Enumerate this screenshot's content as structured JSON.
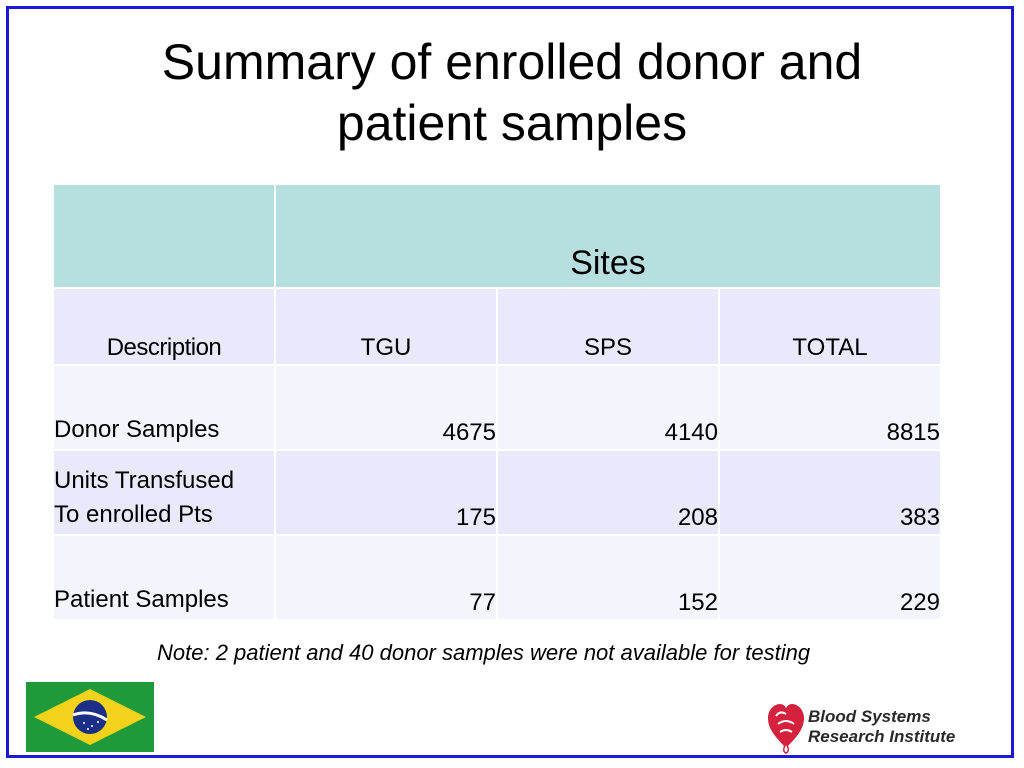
{
  "title": "Summary of enrolled donor and patient samples",
  "table": {
    "group_header": "Sites",
    "columns": [
      "Description",
      "TGU",
      "SPS",
      "TOTAL"
    ],
    "rows": [
      {
        "description": "Donor Samples",
        "tgu": "4675",
        "sps": "4140",
        "total": "8815"
      },
      {
        "description_line1": "Units Transfused",
        "description_line2": "To enrolled Pts",
        "tgu": "175",
        "sps": "208",
        "total": "383"
      },
      {
        "description": "Patient Samples",
        "tgu": "77",
        "sps": "152",
        "total": "229"
      }
    ]
  },
  "note": "Note: 2 patient and 40 donor samples were not available for testing",
  "logo": {
    "line1": "Blood Systems",
    "line2": "Research Institute"
  },
  "colors": {
    "frame": "#1a1ad6",
    "sites_header_bg": "#b8dfe0",
    "row_light_bg": "#f4f4fd",
    "row_dark_bg": "#e9e9fb",
    "logo_red": "#d4213d"
  }
}
